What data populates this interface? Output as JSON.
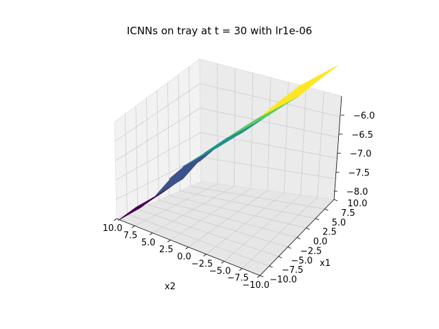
{
  "chart_data": {
    "type": "surface3d",
    "title": "ICNNs on tray at t = 30 with lr1e-06",
    "xlabel": "x2",
    "ylabel": "x1",
    "zlabel": "",
    "x_ticks": [
      "10.0",
      "7.5",
      "5.0",
      "2.5",
      "0.0",
      "−2.5",
      "−5.0",
      "−7.5",
      "−10.0"
    ],
    "y_ticks": [
      "−10.0",
      "−7.5",
      "−5.0",
      "−2.5",
      "0.0",
      "2.5",
      "5.0",
      "7.5",
      "10.0"
    ],
    "z_ticks": [
      "−8.0",
      "−7.5",
      "−7.0",
      "−6.5",
      "−6.0"
    ],
    "xlim": [
      -10,
      10
    ],
    "ylim": [
      -10,
      10
    ],
    "zlim": [
      -8.2,
      -5.8
    ],
    "colormap": "viridis",
    "colors": [
      "#440154",
      "#3b528b",
      "#21918c",
      "#5ec962",
      "#fde725"
    ],
    "grid": true,
    "surface_profile": [
      {
        "s": 0.0,
        "z": -8.05
      },
      {
        "s": 0.12,
        "z": -7.95
      },
      {
        "s": 0.22,
        "z": -7.75
      },
      {
        "s": 0.3,
        "z": -7.3
      },
      {
        "s": 0.38,
        "z": -7.05
      },
      {
        "s": 0.5,
        "z": -6.9
      },
      {
        "s": 0.62,
        "z": -6.7
      },
      {
        "s": 0.72,
        "z": -6.55
      },
      {
        "s": 0.8,
        "z": -6.45
      },
      {
        "s": 0.88,
        "z": -6.2
      },
      {
        "s": 1.0,
        "z": -5.9
      }
    ]
  }
}
